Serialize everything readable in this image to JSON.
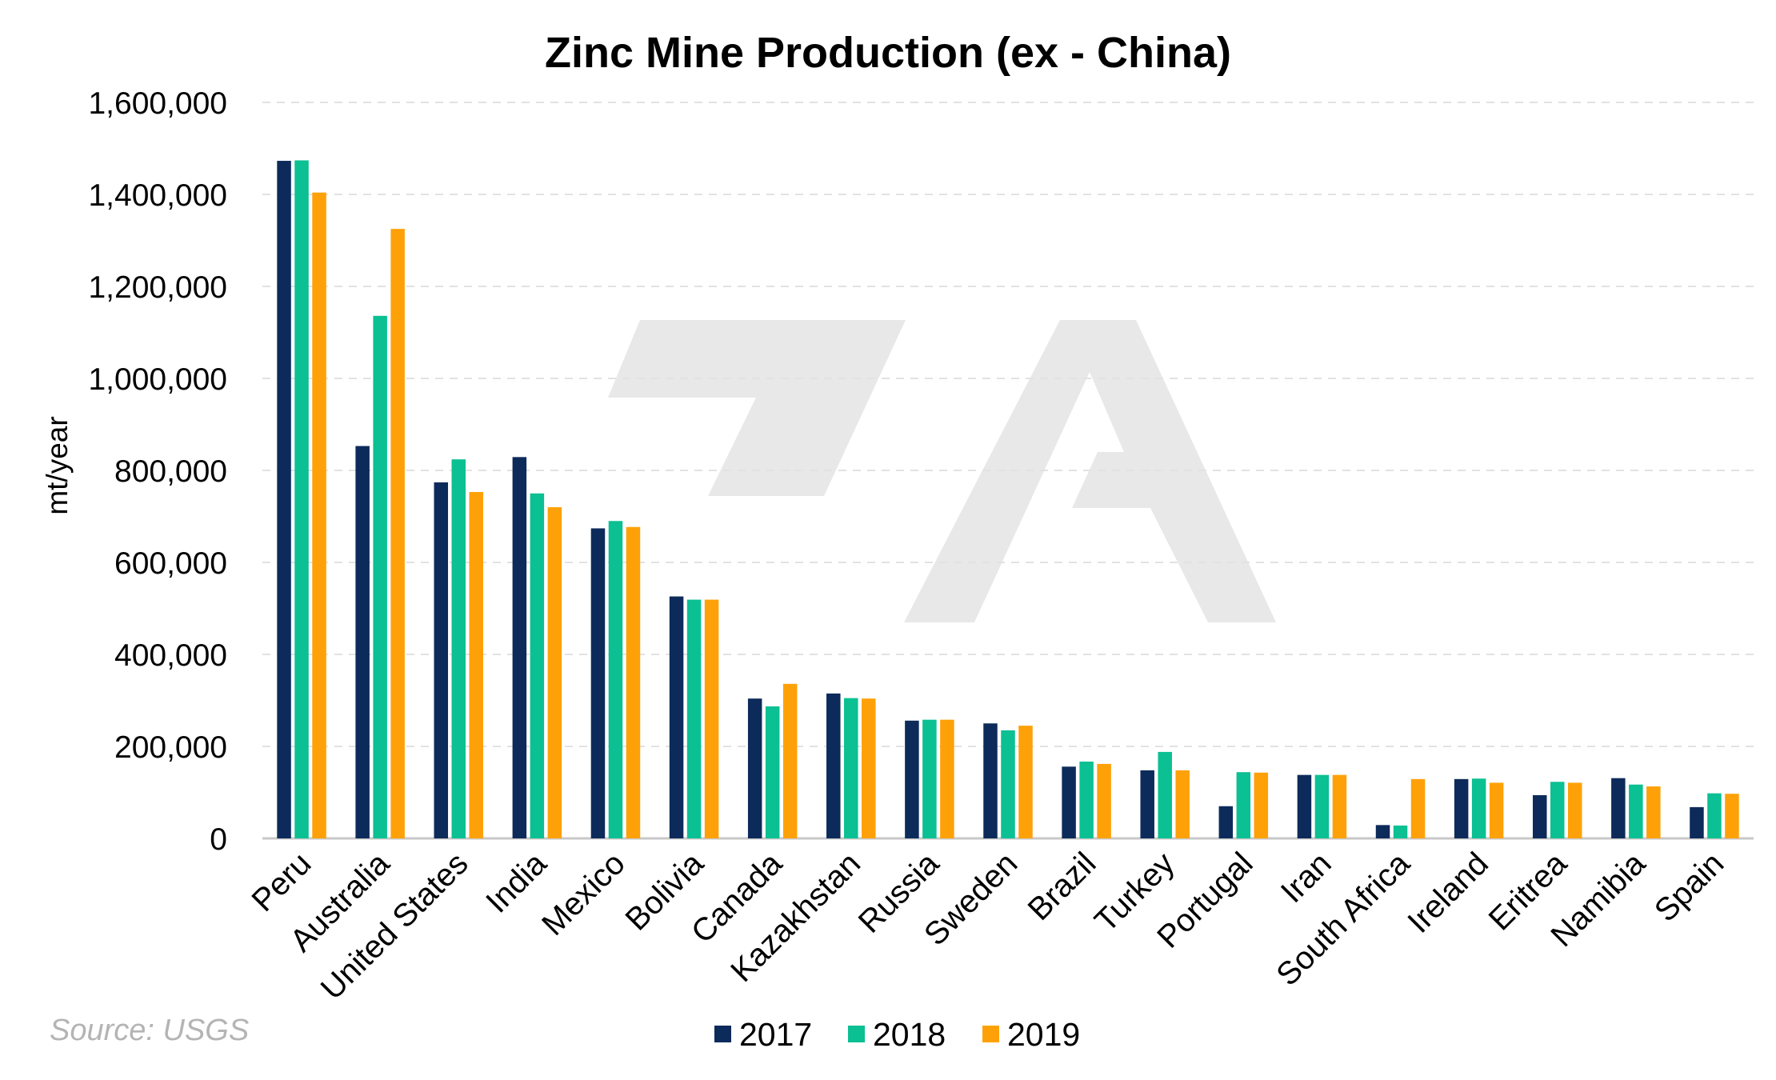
{
  "chart_data": {
    "type": "bar",
    "title": "Zinc Mine Production (ex - China)",
    "xlabel": "",
    "ylabel": "mt/year",
    "ylim": [
      0,
      1600000
    ],
    "yticks": [
      0,
      200000,
      400000,
      600000,
      800000,
      1000000,
      1200000,
      1400000,
      1600000
    ],
    "ytick_labels": [
      "0",
      "200,000",
      "400,000",
      "600,000",
      "800,000",
      "1,000,000",
      "1,200,000",
      "1,400,000",
      "1,600,000"
    ],
    "grid": true,
    "legend_position": "bottom",
    "categories": [
      "Peru",
      "Australia",
      "United States",
      "India",
      "Mexico",
      "Bolivia",
      "Canada",
      "Kazakhstan",
      "Russia",
      "Sweden",
      "Brazil",
      "Turkey",
      "Portugal",
      "Iran",
      "South Africa",
      "Ireland",
      "Eritrea",
      "Namibia",
      "Spain"
    ],
    "series": [
      {
        "name": "2017",
        "color": "#0d2b5a",
        "values": [
          1473000,
          853000,
          774000,
          829000,
          674000,
          526000,
          304000,
          315000,
          256000,
          250000,
          156000,
          148000,
          70000,
          138000,
          29000,
          129000,
          94000,
          131000,
          68000
        ]
      },
      {
        "name": "2018",
        "color": "#0bc092",
        "values": [
          1474000,
          1136000,
          824000,
          750000,
          690000,
          519000,
          287000,
          305000,
          258000,
          235000,
          167000,
          188000,
          144000,
          138000,
          28000,
          130000,
          123000,
          117000,
          98000
        ]
      },
      {
        "name": "2019",
        "color": "#fea108",
        "values": [
          1404000,
          1325000,
          753000,
          720000,
          677000,
          519000,
          336000,
          304000,
          258000,
          245000,
          162000,
          148000,
          143000,
          138000,
          129000,
          121000,
          121000,
          113000,
          97000
        ]
      }
    ]
  },
  "source_text": "Source: USGS"
}
